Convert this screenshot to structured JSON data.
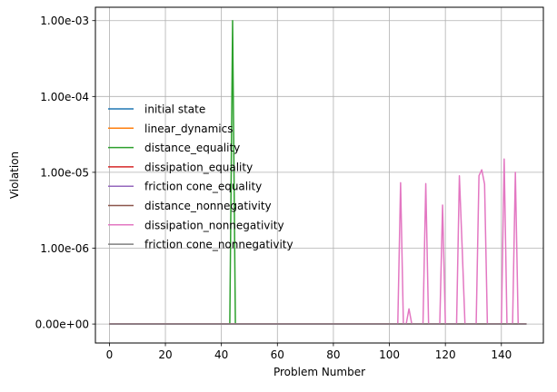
{
  "chart_data": {
    "type": "line",
    "title": "",
    "xlabel": "Problem Number",
    "ylabel": "Violation",
    "xlim": [
      -5,
      155
    ],
    "xticks": [
      0,
      20,
      40,
      60,
      80,
      100,
      120,
      140
    ],
    "yscale": "symlog",
    "linthresh": 1e-06,
    "ylim": [
      -2.5e-07,
      0.0015
    ],
    "yticks": [
      0,
      1e-06,
      1e-05,
      0.0001,
      0.001
    ],
    "ytick_labels": [
      "0.00e+00",
      "1.00e-06",
      "1.00e-05",
      "1.00e-04",
      "1.00e-03"
    ],
    "grid": true,
    "legend_loc": "center-left",
    "series": [
      {
        "name": "initial state",
        "color": "#1f77b4",
        "points": [
          [
            0,
            0
          ],
          [
            149,
            0
          ]
        ]
      },
      {
        "name": "linear_dynamics",
        "color": "#ff7f0e",
        "points": [
          [
            0,
            0
          ],
          [
            149,
            0
          ]
        ]
      },
      {
        "name": "distance_equality",
        "color": "#2ca02c",
        "points": [
          [
            0,
            0
          ],
          [
            43,
            0
          ],
          [
            44,
            0.001
          ],
          [
            45,
            0
          ],
          [
            149,
            0
          ]
        ]
      },
      {
        "name": "dissipation_equality",
        "color": "#d62728",
        "points": [
          [
            0,
            0
          ],
          [
            149,
            0
          ]
        ]
      },
      {
        "name": "friction cone_equality",
        "color": "#9467bd",
        "points": [
          [
            0,
            0
          ],
          [
            149,
            0
          ]
        ]
      },
      {
        "name": "distance_nonnegativity",
        "color": "#8c564b",
        "points": [
          [
            0,
            0
          ],
          [
            149,
            0
          ]
        ]
      },
      {
        "name": "dissipation_nonnegativity",
        "color": "#e377c2",
        "points": [
          [
            0,
            0
          ],
          [
            103,
            0
          ],
          [
            104,
            7.3e-06
          ],
          [
            105,
            0
          ],
          [
            106,
            0
          ],
          [
            107,
            2e-07
          ],
          [
            108,
            0
          ],
          [
            111,
            0
          ],
          [
            112,
            0
          ],
          [
            113,
            7.1e-06
          ],
          [
            114,
            0
          ],
          [
            118,
            0
          ],
          [
            119,
            3.7e-06
          ],
          [
            120,
            0
          ],
          [
            124,
            0
          ],
          [
            125,
            9e-06
          ],
          [
            126,
            1e-06
          ],
          [
            127,
            0
          ],
          [
            131,
            0
          ],
          [
            132,
            9e-06
          ],
          [
            133,
            1.08e-05
          ],
          [
            134,
            7e-06
          ],
          [
            135,
            0
          ],
          [
            140,
            0
          ],
          [
            141,
            1.5e-05
          ],
          [
            142,
            0
          ],
          [
            144,
            0
          ],
          [
            145,
            1e-05
          ],
          [
            146,
            0
          ],
          [
            149,
            0
          ]
        ]
      },
      {
        "name": "friction cone_nonnegativity",
        "color": "#7f7f7f",
        "points": [
          [
            0,
            0
          ],
          [
            149,
            0
          ]
        ]
      }
    ]
  }
}
